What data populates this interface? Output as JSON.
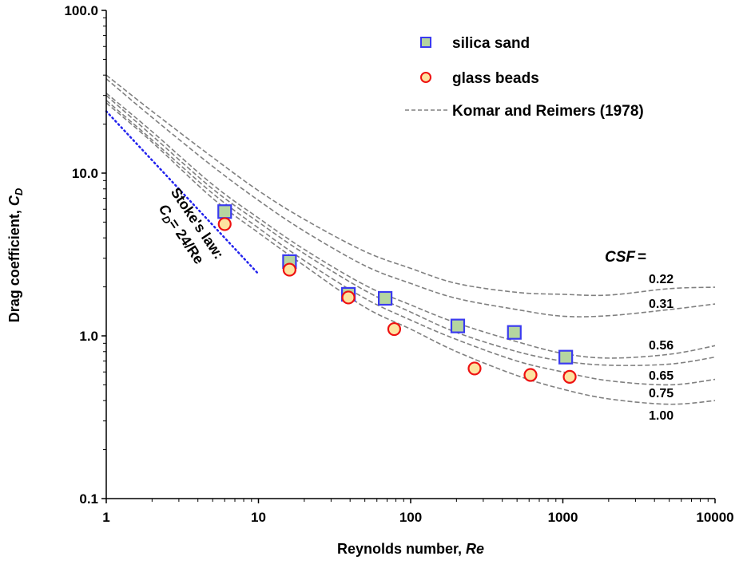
{
  "chart_data": {
    "type": "scatter",
    "xlabel": "Reynolds number,",
    "xlabel_italic": "Re",
    "ylabel": "Drag coefficient,",
    "ylabel_italic": "C",
    "ylabel_sub": "D",
    "x_scale": "log",
    "y_scale": "log",
    "xlim": [
      1,
      10000
    ],
    "ylim": [
      0.1,
      100
    ],
    "x_ticks": [
      "1",
      "10",
      "100",
      "1000",
      "10000"
    ],
    "y_ticks": [
      "0.1",
      "1.0",
      "10.0",
      "100.0"
    ],
    "grid": false,
    "legend_position": "top-right",
    "series": [
      {
        "name": "silica sand",
        "marker": "square",
        "fill": "#b5d5a0",
        "stroke": "#3a3af0",
        "x": [
          6,
          16,
          39,
          68,
          204,
          480,
          1045
        ],
        "y": [
          5.8,
          2.86,
          1.8,
          1.7,
          1.15,
          1.05,
          0.74
        ]
      },
      {
        "name": "glass beads",
        "marker": "circle",
        "fill": "#fde3a0",
        "stroke": "#ee1111",
        "x": [
          6,
          16,
          39,
          78,
          263,
          613,
          1109
        ],
        "y": [
          4.86,
          2.55,
          1.72,
          1.1,
          0.63,
          0.575,
          0.56
        ]
      }
    ],
    "curves_legend": "Komar and Reimers (1978)",
    "curves_color": "#808080",
    "curves_re": [
      1,
      2,
      5,
      10,
      20,
      50,
      100,
      200,
      500,
      1000,
      2000,
      5000,
      10000
    ],
    "curves": [
      {
        "label": "0.22",
        "cd": [
          40,
          24,
          12.5,
          7.8,
          5.2,
          3.3,
          2.6,
          2.1,
          1.85,
          1.8,
          1.78,
          1.95,
          1.99
        ]
      },
      {
        "label": "0.31",
        "cd": [
          38,
          22,
          11,
          6.8,
          4.4,
          2.7,
          2.1,
          1.7,
          1.45,
          1.32,
          1.33,
          1.45,
          1.57
        ]
      },
      {
        "label": "0.56",
        "cd": [
          31,
          18,
          8.5,
          5.3,
          3.4,
          2.05,
          1.55,
          1.2,
          0.92,
          0.78,
          0.73,
          0.77,
          0.87
        ]
      },
      {
        "label": "0.65",
        "cd": [
          30,
          17,
          8,
          5,
          3.2,
          1.9,
          1.4,
          1.05,
          0.8,
          0.7,
          0.66,
          0.67,
          0.74
        ]
      },
      {
        "label": "0.75",
        "cd": [
          28,
          16,
          7.5,
          4.6,
          2.9,
          1.7,
          1.25,
          0.95,
          0.7,
          0.6,
          0.53,
          0.5,
          0.54
        ]
      },
      {
        "label": "1.00",
        "cd": [
          27,
          15.5,
          7,
          4.3,
          2.7,
          1.5,
          1.1,
          0.8,
          0.57,
          0.47,
          0.41,
          0.38,
          0.4
        ]
      }
    ],
    "csf_title": "CSF",
    "csf_eq": "=",
    "stokes": {
      "line1": "Stoke's law:",
      "c": "C",
      "sub": "D",
      "eq": "= 24/Re",
      "x": [
        1,
        10
      ],
      "y": [
        24,
        2.4
      ],
      "color": "#2222ee"
    }
  }
}
